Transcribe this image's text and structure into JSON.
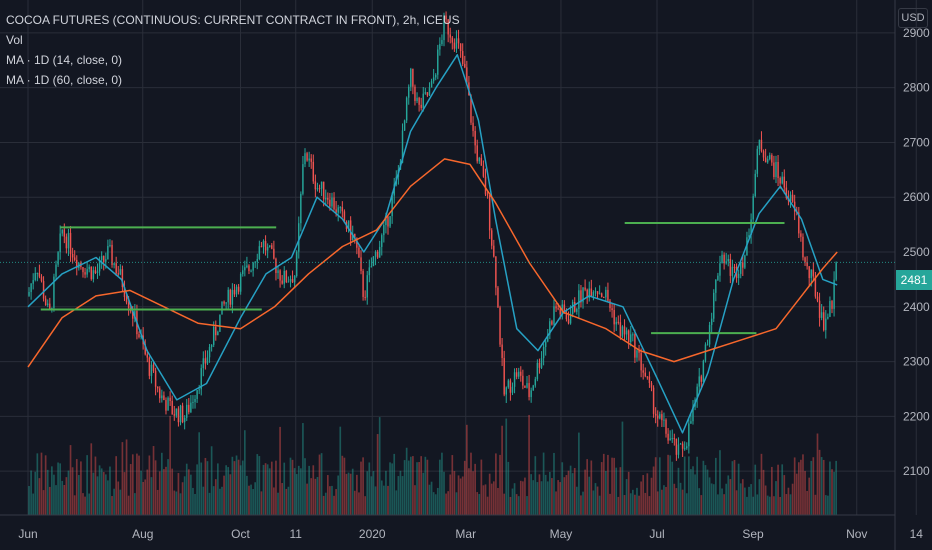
{
  "legend": {
    "title": "COCOA FUTURES (CONTINUOUS: CURRENT CONTRACT IN FRONT), 2h, ICEUS",
    "volume": "Vol",
    "ma_fast": "MA · 1D (14, close, 0)",
    "ma_slow": "MA · 1D (60, close, 0)"
  },
  "currency": "USD",
  "last_price": "2481",
  "colors": {
    "background": "#131722",
    "grid": "#2a2e39",
    "up": "#26a69a",
    "down": "#ef5350",
    "ma_fast": "#26a1c4",
    "ma_slow": "#f7672c",
    "levels": "#4caf50"
  },
  "chart_data": {
    "type": "candlestick",
    "y_axis": {
      "range": [
        2020,
        2960
      ],
      "ticks": [
        2100,
        2200,
        2300,
        2400,
        2500,
        2600,
        2700,
        2800,
        2900
      ]
    },
    "x_axis": {
      "labels": [
        {
          "label": "Jun",
          "t": 0.0
        },
        {
          "label": "Aug",
          "t": 0.135
        },
        {
          "label": "Oct",
          "t": 0.25
        },
        {
          "label": "11",
          "t": 0.315
        },
        {
          "label": "2020",
          "t": 0.405
        },
        {
          "label": "Mar",
          "t": 0.515
        },
        {
          "label": "May",
          "t": 0.627
        },
        {
          "label": "Jul",
          "t": 0.74
        },
        {
          "label": "Sep",
          "t": 0.853
        },
        {
          "label": "Nov",
          "t": 0.975
        },
        {
          "label": "14",
          "t": 1.045
        }
      ]
    },
    "price_path": [
      [
        0.0,
        2420
      ],
      [
        0.01,
        2480
      ],
      [
        0.025,
        2380
      ],
      [
        0.04,
        2540
      ],
      [
        0.06,
        2480
      ],
      [
        0.08,
        2460
      ],
      [
        0.095,
        2500
      ],
      [
        0.11,
        2450
      ],
      [
        0.125,
        2380
      ],
      [
        0.14,
        2300
      ],
      [
        0.155,
        2240
      ],
      [
        0.17,
        2210
      ],
      [
        0.185,
        2200
      ],
      [
        0.2,
        2260
      ],
      [
        0.215,
        2330
      ],
      [
        0.23,
        2400
      ],
      [
        0.245,
        2440
      ],
      [
        0.26,
        2470
      ],
      [
        0.275,
        2520
      ],
      [
        0.29,
        2480
      ],
      [
        0.3,
        2450
      ],
      [
        0.315,
        2460
      ],
      [
        0.325,
        2690
      ],
      [
        0.34,
        2620
      ],
      [
        0.355,
        2600
      ],
      [
        0.37,
        2560
      ],
      [
        0.385,
        2520
      ],
      [
        0.395,
        2420
      ],
      [
        0.405,
        2480
      ],
      [
        0.42,
        2540
      ],
      [
        0.435,
        2640
      ],
      [
        0.45,
        2820
      ],
      [
        0.46,
        2760
      ],
      [
        0.475,
        2800
      ],
      [
        0.49,
        2920
      ],
      [
        0.505,
        2880
      ],
      [
        0.515,
        2820
      ],
      [
        0.525,
        2700
      ],
      [
        0.54,
        2600
      ],
      [
        0.55,
        2460
      ],
      [
        0.56,
        2240
      ],
      [
        0.575,
        2280
      ],
      [
        0.59,
        2240
      ],
      [
        0.605,
        2320
      ],
      [
        0.62,
        2400
      ],
      [
        0.635,
        2380
      ],
      [
        0.65,
        2420
      ],
      [
        0.665,
        2440
      ],
      [
        0.68,
        2420
      ],
      [
        0.695,
        2360
      ],
      [
        0.71,
        2340
      ],
      [
        0.725,
        2280
      ],
      [
        0.74,
        2200
      ],
      [
        0.755,
        2160
      ],
      [
        0.765,
        2130
      ],
      [
        0.775,
        2160
      ],
      [
        0.79,
        2260
      ],
      [
        0.805,
        2400
      ],
      [
        0.815,
        2500
      ],
      [
        0.83,
        2460
      ],
      [
        0.845,
        2500
      ],
      [
        0.86,
        2700
      ],
      [
        0.875,
        2660
      ],
      [
        0.89,
        2620
      ],
      [
        0.905,
        2560
      ],
      [
        0.915,
        2470
      ],
      [
        0.925,
        2440
      ],
      [
        0.935,
        2370
      ],
      [
        0.945,
        2400
      ],
      [
        0.952,
        2481
      ]
    ],
    "ma_14": [
      [
        0.0,
        2400
      ],
      [
        0.04,
        2460
      ],
      [
        0.08,
        2490
      ],
      [
        0.11,
        2450
      ],
      [
        0.14,
        2320
      ],
      [
        0.175,
        2230
      ],
      [
        0.21,
        2260
      ],
      [
        0.25,
        2380
      ],
      [
        0.28,
        2460
      ],
      [
        0.31,
        2490
      ],
      [
        0.34,
        2600
      ],
      [
        0.37,
        2560
      ],
      [
        0.395,
        2500
      ],
      [
        0.42,
        2560
      ],
      [
        0.45,
        2720
      ],
      [
        0.48,
        2800
      ],
      [
        0.505,
        2860
      ],
      [
        0.53,
        2740
      ],
      [
        0.55,
        2560
      ],
      [
        0.575,
        2360
      ],
      [
        0.6,
        2320
      ],
      [
        0.63,
        2390
      ],
      [
        0.66,
        2420
      ],
      [
        0.7,
        2400
      ],
      [
        0.74,
        2270
      ],
      [
        0.77,
        2170
      ],
      [
        0.8,
        2280
      ],
      [
        0.83,
        2450
      ],
      [
        0.86,
        2570
      ],
      [
        0.885,
        2620
      ],
      [
        0.91,
        2560
      ],
      [
        0.935,
        2450
      ],
      [
        0.952,
        2440
      ]
    ],
    "ma_60": [
      [
        0.0,
        2290
      ],
      [
        0.04,
        2380
      ],
      [
        0.08,
        2420
      ],
      [
        0.12,
        2430
      ],
      [
        0.16,
        2400
      ],
      [
        0.2,
        2370
      ],
      [
        0.25,
        2360
      ],
      [
        0.29,
        2400
      ],
      [
        0.33,
        2460
      ],
      [
        0.37,
        2510
      ],
      [
        0.41,
        2540
      ],
      [
        0.45,
        2620
      ],
      [
        0.49,
        2670
      ],
      [
        0.52,
        2660
      ],
      [
        0.55,
        2590
      ],
      [
        0.59,
        2480
      ],
      [
        0.63,
        2390
      ],
      [
        0.68,
        2360
      ],
      [
        0.72,
        2320
      ],
      [
        0.76,
        2300
      ],
      [
        0.8,
        2320
      ],
      [
        0.84,
        2340
      ],
      [
        0.88,
        2360
      ],
      [
        0.91,
        2420
      ],
      [
        0.935,
        2470
      ],
      [
        0.952,
        2500
      ]
    ],
    "levels": [
      {
        "price": 2545,
        "t0": 0.038,
        "t1": 0.292
      },
      {
        "price": 2395,
        "t0": 0.015,
        "t1": 0.275
      },
      {
        "price": 2553,
        "t0": 0.702,
        "t1": 0.89
      },
      {
        "price": 2352,
        "t0": 0.733,
        "t1": 0.857
      }
    ]
  }
}
